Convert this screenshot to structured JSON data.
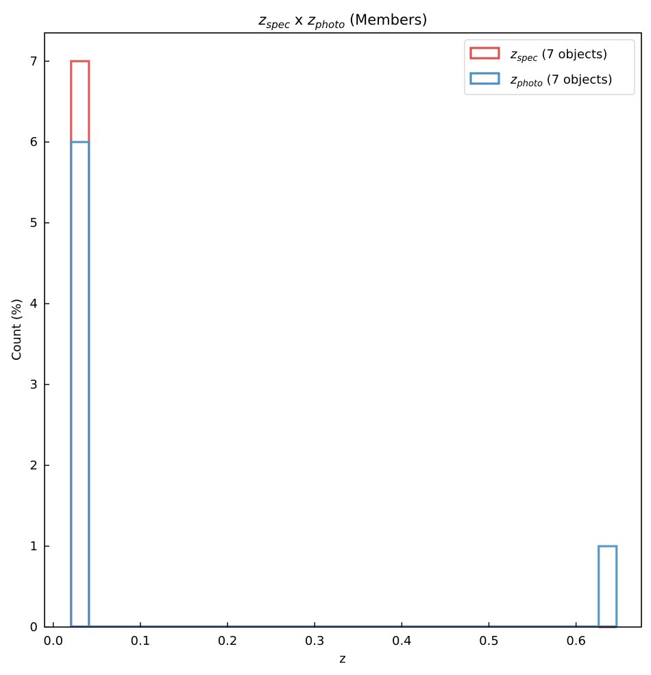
{
  "chart_data": {
    "type": "histogram",
    "title": {
      "parts": [
        {
          "text": "z",
          "style": "italic"
        },
        {
          "text": "spec",
          "style": "italic-sub"
        },
        {
          "text": " x ",
          "style": "normal"
        },
        {
          "text": "z",
          "style": "italic"
        },
        {
          "text": "photo",
          "style": "italic-sub"
        },
        {
          "text": " (Members)",
          "style": "normal"
        }
      ]
    },
    "xlabel": "z",
    "ylabel": "Count (%)",
    "xlim": [
      -0.01,
      0.675
    ],
    "ylim": [
      0,
      7.35
    ],
    "xticks": [
      0.0,
      0.1,
      0.2,
      0.3,
      0.4,
      0.5,
      0.6
    ],
    "xtick_labels": [
      "0.0",
      "0.1",
      "0.2",
      "0.3",
      "0.4",
      "0.5",
      "0.6"
    ],
    "yticks": [
      0,
      1,
      2,
      3,
      4,
      5,
      6,
      7
    ],
    "ytick_labels": [
      "0",
      "1",
      "2",
      "3",
      "4",
      "5",
      "6",
      "7"
    ],
    "bin_edges": [
      0.0205,
      0.041,
      0.626,
      0.6465
    ],
    "legend_position": "top-right",
    "grid": false,
    "series": [
      {
        "name": "spec",
        "legend_parts": [
          {
            "text": "z",
            "style": "italic"
          },
          {
            "text": "spec",
            "style": "italic-sub"
          },
          {
            "text": " (7 objects)",
            "style": "normal"
          }
        ],
        "color": "#d9534f",
        "bins": [
          {
            "x0": 0.0205,
            "x1": 0.041,
            "value": 7
          },
          {
            "x0": 0.626,
            "x1": 0.6465,
            "value": 0
          }
        ]
      },
      {
        "name": "photo",
        "legend_parts": [
          {
            "text": "z",
            "style": "italic"
          },
          {
            "text": "photo",
            "style": "italic-sub"
          },
          {
            "text": " (7 objects)",
            "style": "normal"
          }
        ],
        "color": "#4a90c2",
        "bins": [
          {
            "x0": 0.0205,
            "x1": 0.041,
            "value": 6
          },
          {
            "x0": 0.626,
            "x1": 0.6465,
            "value": 1
          }
        ]
      }
    ]
  }
}
